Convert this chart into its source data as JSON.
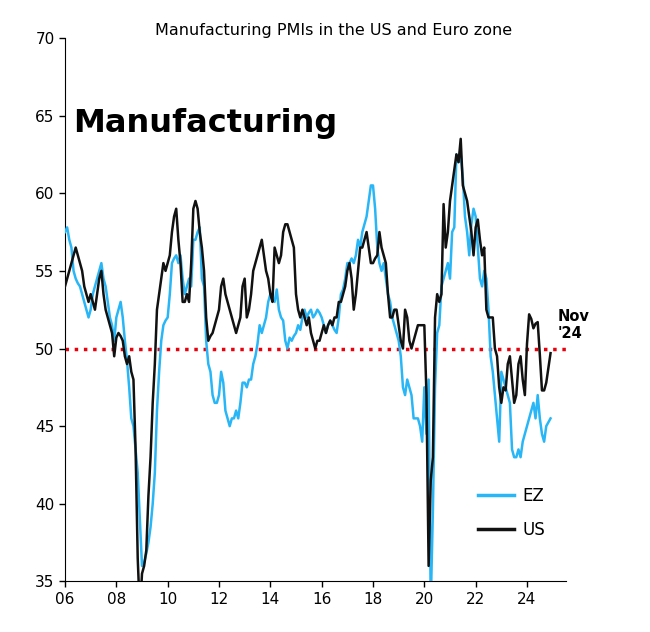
{
  "title": "Manufacturing PMIs in the US and Euro zone",
  "subtitle": "Manufacturing",
  "annotation": "Nov\n'24",
  "ylim": [
    35,
    70
  ],
  "yticks": [
    35,
    40,
    45,
    50,
    55,
    60,
    65,
    70
  ],
  "xlim": [
    2006.0,
    2025.5
  ],
  "xticks": [
    2006,
    2008,
    2010,
    2012,
    2014,
    2016,
    2018,
    2020,
    2022,
    2024
  ],
  "xticklabels": [
    "06",
    "08",
    "10",
    "12",
    "14",
    "16",
    "18",
    "20",
    "22",
    "24"
  ],
  "hline_y": 50,
  "hline_color": "#e8000d",
  "ez_color": "#29b6f6",
  "us_color": "#111111",
  "ez_label": "EZ",
  "us_label": "US",
  "background_color": "#ffffff",
  "ez_x": [
    2006.0,
    2006.083,
    2006.167,
    2006.25,
    2006.333,
    2006.417,
    2006.5,
    2006.583,
    2006.667,
    2006.75,
    2006.833,
    2006.917,
    2007.0,
    2007.083,
    2007.167,
    2007.25,
    2007.333,
    2007.417,
    2007.5,
    2007.583,
    2007.667,
    2007.75,
    2007.833,
    2007.917,
    2008.0,
    2008.083,
    2008.167,
    2008.25,
    2008.333,
    2008.417,
    2008.5,
    2008.583,
    2008.667,
    2008.75,
    2008.833,
    2008.917,
    2009.0,
    2009.083,
    2009.167,
    2009.25,
    2009.333,
    2009.417,
    2009.5,
    2009.583,
    2009.667,
    2009.75,
    2009.833,
    2009.917,
    2010.0,
    2010.083,
    2010.167,
    2010.25,
    2010.333,
    2010.417,
    2010.5,
    2010.583,
    2010.667,
    2010.75,
    2010.833,
    2010.917,
    2011.0,
    2011.083,
    2011.167,
    2011.25,
    2011.333,
    2011.417,
    2011.5,
    2011.583,
    2011.667,
    2011.75,
    2011.833,
    2011.917,
    2012.0,
    2012.083,
    2012.167,
    2012.25,
    2012.333,
    2012.417,
    2012.5,
    2012.583,
    2012.667,
    2012.75,
    2012.833,
    2012.917,
    2013.0,
    2013.083,
    2013.167,
    2013.25,
    2013.333,
    2013.417,
    2013.5,
    2013.583,
    2013.667,
    2013.75,
    2013.833,
    2013.917,
    2014.0,
    2014.083,
    2014.167,
    2014.25,
    2014.333,
    2014.417,
    2014.5,
    2014.583,
    2014.667,
    2014.75,
    2014.833,
    2014.917,
    2015.0,
    2015.083,
    2015.167,
    2015.25,
    2015.333,
    2015.417,
    2015.5,
    2015.583,
    2015.667,
    2015.75,
    2015.833,
    2015.917,
    2016.0,
    2016.083,
    2016.167,
    2016.25,
    2016.333,
    2016.417,
    2016.5,
    2016.583,
    2016.667,
    2016.75,
    2016.833,
    2016.917,
    2017.0,
    2017.083,
    2017.167,
    2017.25,
    2017.333,
    2017.417,
    2017.5,
    2017.583,
    2017.667,
    2017.75,
    2017.833,
    2017.917,
    2018.0,
    2018.083,
    2018.167,
    2018.25,
    2018.333,
    2018.417,
    2018.5,
    2018.583,
    2018.667,
    2018.75,
    2018.833,
    2018.917,
    2019.0,
    2019.083,
    2019.167,
    2019.25,
    2019.333,
    2019.417,
    2019.5,
    2019.583,
    2019.667,
    2019.75,
    2019.833,
    2019.917,
    2020.0,
    2020.083,
    2020.167,
    2020.25,
    2020.333,
    2020.417,
    2020.5,
    2020.583,
    2020.667,
    2020.75,
    2020.833,
    2020.917,
    2021.0,
    2021.083,
    2021.167,
    2021.25,
    2021.333,
    2021.417,
    2021.5,
    2021.583,
    2021.667,
    2021.75,
    2021.833,
    2021.917,
    2022.0,
    2022.083,
    2022.167,
    2022.25,
    2022.333,
    2022.417,
    2022.5,
    2022.583,
    2022.667,
    2022.75,
    2022.833,
    2022.917,
    2023.0,
    2023.083,
    2023.167,
    2023.25,
    2023.333,
    2023.417,
    2023.5,
    2023.583,
    2023.667,
    2023.75,
    2023.833,
    2023.917,
    2024.0,
    2024.083,
    2024.167,
    2024.25,
    2024.333,
    2024.417,
    2024.5,
    2024.583,
    2024.667,
    2024.75,
    2024.917
  ],
  "ez_y": [
    57.5,
    57.8,
    57.0,
    56.5,
    55.0,
    54.5,
    54.2,
    54.0,
    53.5,
    53.0,
    52.5,
    52.0,
    52.5,
    53.5,
    54.0,
    54.5,
    55.0,
    55.5,
    54.5,
    54.0,
    53.0,
    52.0,
    51.5,
    50.5,
    52.0,
    52.5,
    53.0,
    52.0,
    50.5,
    49.2,
    47.5,
    45.5,
    45.0,
    43.5,
    42.0,
    39.0,
    36.0,
    36.2,
    36.8,
    37.5,
    38.5,
    40.0,
    42.0,
    46.0,
    48.5,
    50.5,
    51.5,
    51.8,
    52.0,
    53.5,
    55.5,
    55.8,
    56.0,
    55.5,
    56.0,
    54.5,
    53.5,
    54.0,
    54.5,
    54.0,
    57.0,
    57.0,
    57.5,
    57.8,
    54.5,
    54.0,
    50.5,
    49.0,
    48.5,
    47.0,
    46.5,
    46.5,
    47.0,
    48.5,
    47.8,
    46.0,
    45.5,
    45.0,
    45.5,
    45.5,
    46.0,
    45.5,
    46.5,
    47.8,
    47.8,
    47.5,
    48.0,
    48.0,
    49.0,
    49.5,
    50.3,
    51.5,
    51.0,
    51.5,
    52.0,
    53.0,
    53.5,
    53.2,
    53.0,
    53.8,
    52.5,
    52.0,
    51.8,
    50.5,
    50.0,
    50.7,
    50.5,
    50.8,
    51.0,
    51.5,
    51.2,
    52.0,
    52.5,
    52.0,
    52.3,
    52.5,
    52.0,
    52.2,
    52.5,
    52.3,
    52.0,
    51.5,
    51.0,
    51.5,
    51.8,
    51.5,
    51.2,
    51.0,
    52.0,
    53.5,
    53.8,
    54.5,
    55.5,
    55.5,
    55.8,
    55.5,
    56.0,
    57.0,
    56.5,
    57.5,
    58.0,
    58.5,
    59.5,
    60.5,
    60.5,
    59.0,
    56.5,
    55.5,
    55.0,
    55.5,
    54.5,
    53.5,
    53.0,
    52.0,
    51.5,
    51.0,
    50.5,
    49.5,
    47.5,
    47.0,
    48.0,
    47.5,
    47.0,
    45.5,
    45.5,
    45.5,
    45.0,
    44.0,
    47.5,
    44.5,
    48.0,
    33.5,
    39.5,
    47.5,
    51.0,
    51.5,
    54.0,
    54.5,
    55.0,
    55.5,
    54.5,
    57.5,
    57.8,
    62.5,
    62.0,
    62.5,
    61.0,
    58.5,
    57.5,
    56.0,
    58.0,
    59.0,
    58.5,
    56.5,
    54.5,
    54.0,
    55.0,
    54.5,
    52.5,
    49.5,
    48.5,
    47.0,
    45.5,
    44.0,
    48.5,
    48.0,
    47.5,
    47.0,
    46.5,
    43.5,
    43.0,
    43.0,
    43.5,
    43.0,
    44.0,
    44.5,
    45.0,
    45.5,
    46.0,
    46.5,
    45.5,
    47.0,
    45.5,
    44.5,
    44.0,
    45.0,
    45.5
  ],
  "us_x": [
    2006.0,
    2006.083,
    2006.167,
    2006.25,
    2006.333,
    2006.417,
    2006.5,
    2006.583,
    2006.667,
    2006.75,
    2006.833,
    2006.917,
    2007.0,
    2007.083,
    2007.167,
    2007.25,
    2007.333,
    2007.417,
    2007.5,
    2007.583,
    2007.667,
    2007.75,
    2007.833,
    2007.917,
    2008.0,
    2008.083,
    2008.167,
    2008.25,
    2008.333,
    2008.417,
    2008.5,
    2008.583,
    2008.667,
    2008.75,
    2008.833,
    2008.917,
    2009.0,
    2009.083,
    2009.167,
    2009.25,
    2009.333,
    2009.417,
    2009.5,
    2009.583,
    2009.667,
    2009.75,
    2009.833,
    2009.917,
    2010.0,
    2010.083,
    2010.167,
    2010.25,
    2010.333,
    2010.417,
    2010.5,
    2010.583,
    2010.667,
    2010.75,
    2010.833,
    2010.917,
    2011.0,
    2011.083,
    2011.167,
    2011.25,
    2011.333,
    2011.417,
    2011.5,
    2011.583,
    2011.667,
    2011.75,
    2011.833,
    2011.917,
    2012.0,
    2012.083,
    2012.167,
    2012.25,
    2012.333,
    2012.417,
    2012.5,
    2012.583,
    2012.667,
    2012.75,
    2012.833,
    2012.917,
    2013.0,
    2013.083,
    2013.167,
    2013.25,
    2013.333,
    2013.417,
    2013.5,
    2013.583,
    2013.667,
    2013.75,
    2013.833,
    2013.917,
    2014.0,
    2014.083,
    2014.167,
    2014.25,
    2014.333,
    2014.417,
    2014.5,
    2014.583,
    2014.667,
    2014.75,
    2014.833,
    2014.917,
    2015.0,
    2015.083,
    2015.167,
    2015.25,
    2015.333,
    2015.417,
    2015.5,
    2015.583,
    2015.667,
    2015.75,
    2015.833,
    2015.917,
    2016.0,
    2016.083,
    2016.167,
    2016.25,
    2016.333,
    2016.417,
    2016.5,
    2016.583,
    2016.667,
    2016.75,
    2016.833,
    2016.917,
    2017.0,
    2017.083,
    2017.167,
    2017.25,
    2017.333,
    2017.417,
    2017.5,
    2017.583,
    2017.667,
    2017.75,
    2017.833,
    2017.917,
    2018.0,
    2018.083,
    2018.167,
    2018.25,
    2018.333,
    2018.417,
    2018.5,
    2018.583,
    2018.667,
    2018.75,
    2018.833,
    2018.917,
    2019.0,
    2019.083,
    2019.167,
    2019.25,
    2019.333,
    2019.417,
    2019.5,
    2019.583,
    2019.667,
    2019.75,
    2019.833,
    2019.917,
    2020.0,
    2020.083,
    2020.167,
    2020.25,
    2020.333,
    2020.417,
    2020.5,
    2020.583,
    2020.667,
    2020.75,
    2020.833,
    2020.917,
    2021.0,
    2021.083,
    2021.167,
    2021.25,
    2021.333,
    2021.417,
    2021.5,
    2021.583,
    2021.667,
    2021.75,
    2021.833,
    2021.917,
    2022.0,
    2022.083,
    2022.167,
    2022.25,
    2022.333,
    2022.417,
    2022.5,
    2022.583,
    2022.667,
    2022.75,
    2022.833,
    2022.917,
    2023.0,
    2023.083,
    2023.167,
    2023.25,
    2023.333,
    2023.417,
    2023.5,
    2023.583,
    2023.667,
    2023.75,
    2023.833,
    2023.917,
    2024.0,
    2024.083,
    2024.167,
    2024.25,
    2024.333,
    2024.417,
    2024.5,
    2024.583,
    2024.667,
    2024.75,
    2024.917
  ],
  "us_y": [
    54.0,
    54.5,
    55.0,
    55.5,
    56.0,
    56.5,
    56.0,
    55.5,
    55.0,
    54.0,
    53.5,
    53.0,
    53.5,
    53.0,
    52.5,
    53.5,
    54.5,
    55.0,
    53.5,
    52.5,
    52.0,
    51.5,
    51.0,
    49.5,
    50.7,
    51.0,
    50.8,
    50.5,
    49.5,
    49.0,
    49.5,
    48.5,
    48.0,
    43.5,
    36.5,
    33.0,
    35.5,
    36.0,
    37.0,
    40.5,
    43.0,
    46.5,
    49.0,
    52.5,
    53.5,
    54.5,
    55.5,
    55.0,
    55.5,
    56.0,
    57.5,
    58.5,
    59.0,
    57.0,
    55.5,
    53.0,
    53.0,
    53.5,
    53.0,
    55.5,
    59.0,
    59.5,
    59.0,
    57.5,
    56.5,
    55.0,
    52.0,
    50.5,
    50.8,
    51.0,
    51.5,
    52.0,
    52.5,
    54.0,
    54.5,
    53.5,
    53.0,
    52.5,
    52.0,
    51.5,
    51.0,
    51.5,
    52.0,
    54.0,
    54.5,
    52.0,
    52.5,
    53.5,
    55.0,
    55.5,
    56.0,
    56.5,
    57.0,
    56.0,
    55.0,
    54.5,
    53.5,
    53.0,
    56.5,
    56.0,
    55.5,
    56.0,
    57.5,
    58.0,
    58.0,
    57.5,
    57.0,
    56.5,
    53.5,
    52.5,
    52.0,
    52.5,
    52.0,
    51.5,
    52.0,
    51.0,
    50.5,
    50.0,
    50.5,
    50.5,
    51.0,
    51.5,
    51.0,
    51.5,
    51.8,
    51.5,
    52.0,
    52.0,
    53.0,
    53.0,
    53.5,
    54.0,
    55.0,
    55.5,
    54.5,
    52.5,
    53.5,
    55.0,
    56.5,
    56.5,
    57.0,
    57.5,
    56.5,
    55.5,
    55.5,
    55.8,
    56.0,
    57.5,
    56.5,
    56.0,
    55.5,
    53.5,
    52.0,
    52.0,
    52.5,
    52.5,
    51.5,
    50.5,
    50.0,
    52.5,
    52.0,
    50.5,
    50.0,
    50.5,
    51.0,
    51.5,
    51.5,
    51.5,
    51.5,
    47.0,
    36.0,
    41.5,
    43.0,
    52.0,
    53.5,
    53.0,
    53.5,
    59.3,
    56.5,
    57.5,
    59.5,
    60.5,
    61.5,
    62.5,
    62.0,
    63.5,
    60.5,
    60.0,
    59.5,
    58.5,
    57.5,
    56.0,
    57.8,
    58.3,
    57.0,
    56.0,
    56.5,
    52.5,
    52.0,
    52.0,
    52.0,
    50.0,
    49.5,
    47.5,
    46.5,
    47.5,
    47.3,
    49.0,
    49.5,
    48.0,
    46.5,
    47.0,
    49.0,
    49.5,
    48.0,
    47.0,
    50.3,
    52.2,
    51.9,
    51.3,
    51.6,
    51.7,
    49.6,
    47.3,
    47.3,
    47.8,
    49.7
  ]
}
